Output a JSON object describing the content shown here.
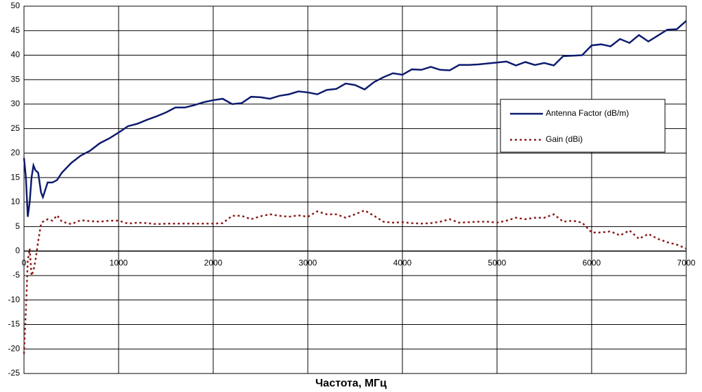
{
  "chart_data": {
    "type": "line",
    "x_label": "Частота, МГц",
    "x": [
      0,
      20,
      40,
      60,
      80,
      100,
      120,
      150,
      180,
      200,
      250,
      300,
      350,
      400,
      500,
      600,
      700,
      800,
      900,
      1000,
      1100,
      1200,
      1300,
      1400,
      1500,
      1600,
      1700,
      1800,
      1900,
      2000,
      2100,
      2200,
      2300,
      2400,
      2500,
      2600,
      2700,
      2800,
      2900,
      3000,
      3100,
      3200,
      3300,
      3400,
      3500,
      3600,
      3700,
      3800,
      3900,
      4000,
      4100,
      4200,
      4300,
      4400,
      4500,
      4600,
      4700,
      4800,
      4900,
      5000,
      5100,
      5200,
      5300,
      5400,
      5500,
      5600,
      5700,
      5800,
      5900,
      6000,
      6100,
      6200,
      6300,
      6400,
      6500,
      6600,
      6700,
      6800,
      6900,
      7000
    ],
    "series": [
      {
        "name": "Antenna Factor (dB/m)",
        "color": "#0d1a6e",
        "dash": "solid",
        "values": [
          19,
          15,
          7,
          10,
          15,
          17.5,
          16.5,
          16,
          12,
          11,
          14,
          14,
          14.5,
          16,
          18,
          19.5,
          20.5,
          22,
          23,
          24.2,
          25.5,
          26,
          26.8,
          27.5,
          28.3,
          29.3,
          29.3,
          29.8,
          30.4,
          30.8,
          31.1,
          30.0,
          30.2,
          31.5,
          31.4,
          31.1,
          31.7,
          32.0,
          32.6,
          32.4,
          32.0,
          32.9,
          33.1,
          34.2,
          33.9,
          33.0,
          34.5,
          35.5,
          36.3,
          36.0,
          37.1,
          37.0,
          37.6,
          37.0,
          36.9,
          38.0,
          38.0,
          38.1,
          38.3,
          38.5,
          38.7,
          37.9,
          38.6,
          38.0,
          38.4,
          37.9,
          39.8,
          39.9,
          40.0,
          42.0,
          42.2,
          41.8,
          43.3,
          42.5,
          44.1,
          42.8,
          44.0,
          45.2,
          45.3,
          47.0
        ]
      },
      {
        "name": "Gain (dBi)",
        "color": "#8b1a1a",
        "dash": "dotted",
        "values": [
          -21,
          -12,
          -2,
          0.5,
          -5,
          -4,
          -2,
          2,
          5.5,
          6,
          6.5,
          6.2,
          7.3,
          6,
          5.5,
          6.3,
          6.1,
          6,
          6.2,
          6.2,
          5.6,
          5.8,
          5.7,
          5.5,
          5.6,
          5.6,
          5.6,
          5.6,
          5.6,
          5.6,
          5.7,
          7.2,
          7.2,
          6.5,
          7.1,
          7.5,
          7.2,
          7.0,
          7.3,
          7.0,
          8.1,
          7.5,
          7.5,
          6.8,
          7.5,
          8.3,
          7.2,
          6.0,
          5.8,
          5.9,
          5.7,
          5.6,
          5.7,
          6.0,
          6.5,
          5.8,
          5.9,
          6.0,
          6.0,
          5.8,
          6.2,
          6.8,
          6.5,
          6.8,
          6.8,
          7.5,
          6.0,
          6.2,
          5.8,
          3.8,
          3.8,
          4.0,
          3.2,
          4.2,
          2.5,
          3.5,
          2.5,
          1.8,
          1.3,
          0.5
        ]
      }
    ],
    "xlim": [
      0,
      7000
    ],
    "xticks": [
      0,
      1000,
      2000,
      3000,
      4000,
      5000,
      6000,
      7000
    ],
    "ylim": [
      -25,
      50
    ],
    "yticks": [
      -25,
      -20,
      -15,
      -10,
      -5,
      0,
      5,
      10,
      15,
      20,
      25,
      30,
      35,
      40,
      45,
      50
    ],
    "grid": true,
    "legend": "right"
  }
}
